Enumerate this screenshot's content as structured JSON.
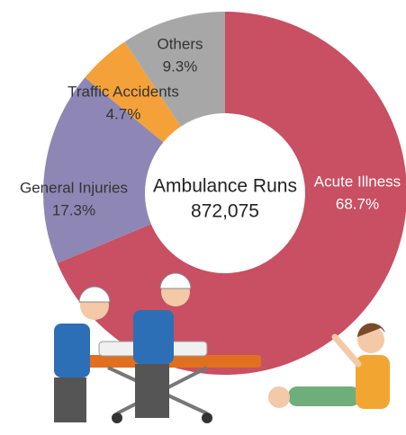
{
  "chart_data": {
    "type": "donut",
    "center_title": "Ambulance Runs",
    "center_value": "872,075",
    "categories": [
      "Acute Illness",
      "General Injuries",
      "Traffic Accidents",
      "Others"
    ],
    "values": [
      68.7,
      17.3,
      4.7,
      9.3
    ],
    "value_labels": [
      "68.7%",
      "17.3%",
      "4.7%",
      "9.3%"
    ],
    "colors": [
      "#c94f62",
      "#8e87b5",
      "#f5a13a",
      "#a7a7a7"
    ]
  }
}
